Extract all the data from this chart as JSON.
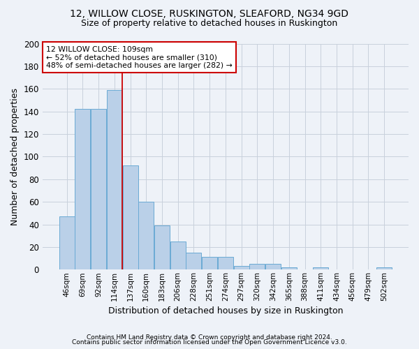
{
  "title1": "12, WILLOW CLOSE, RUSKINGTON, SLEAFORD, NG34 9GD",
  "title2": "Size of property relative to detached houses in Ruskington",
  "xlabel": "Distribution of detached houses by size in Ruskington",
  "ylabel": "Number of detached properties",
  "bar_color": "#bad0e8",
  "bar_edge_color": "#6aaad4",
  "categories": [
    "46sqm",
    "69sqm",
    "92sqm",
    "114sqm",
    "137sqm",
    "160sqm",
    "183sqm",
    "206sqm",
    "228sqm",
    "251sqm",
    "274sqm",
    "297sqm",
    "320sqm",
    "342sqm",
    "365sqm",
    "388sqm",
    "411sqm",
    "434sqm",
    "456sqm",
    "479sqm",
    "502sqm"
  ],
  "values": [
    47,
    142,
    142,
    159,
    92,
    60,
    39,
    25,
    15,
    11,
    11,
    3,
    5,
    5,
    2,
    0,
    2,
    0,
    0,
    0,
    2
  ],
  "ylim": [
    0,
    200
  ],
  "yticks": [
    0,
    20,
    40,
    60,
    80,
    100,
    120,
    140,
    160,
    180,
    200
  ],
  "vline_x": 3.5,
  "vline_color": "#cc0000",
  "annotation_text": "12 WILLOW CLOSE: 109sqm\n← 52% of detached houses are smaller (310)\n48% of semi-detached houses are larger (282) →",
  "annotation_box_color": "white",
  "annotation_box_edgecolor": "#cc0000",
  "footer1": "Contains HM Land Registry data © Crown copyright and database right 2024.",
  "footer2": "Contains public sector information licensed under the Open Government Licence v3.0.",
  "bg_color": "#eef2f8",
  "grid_color": "#c8d0dc"
}
